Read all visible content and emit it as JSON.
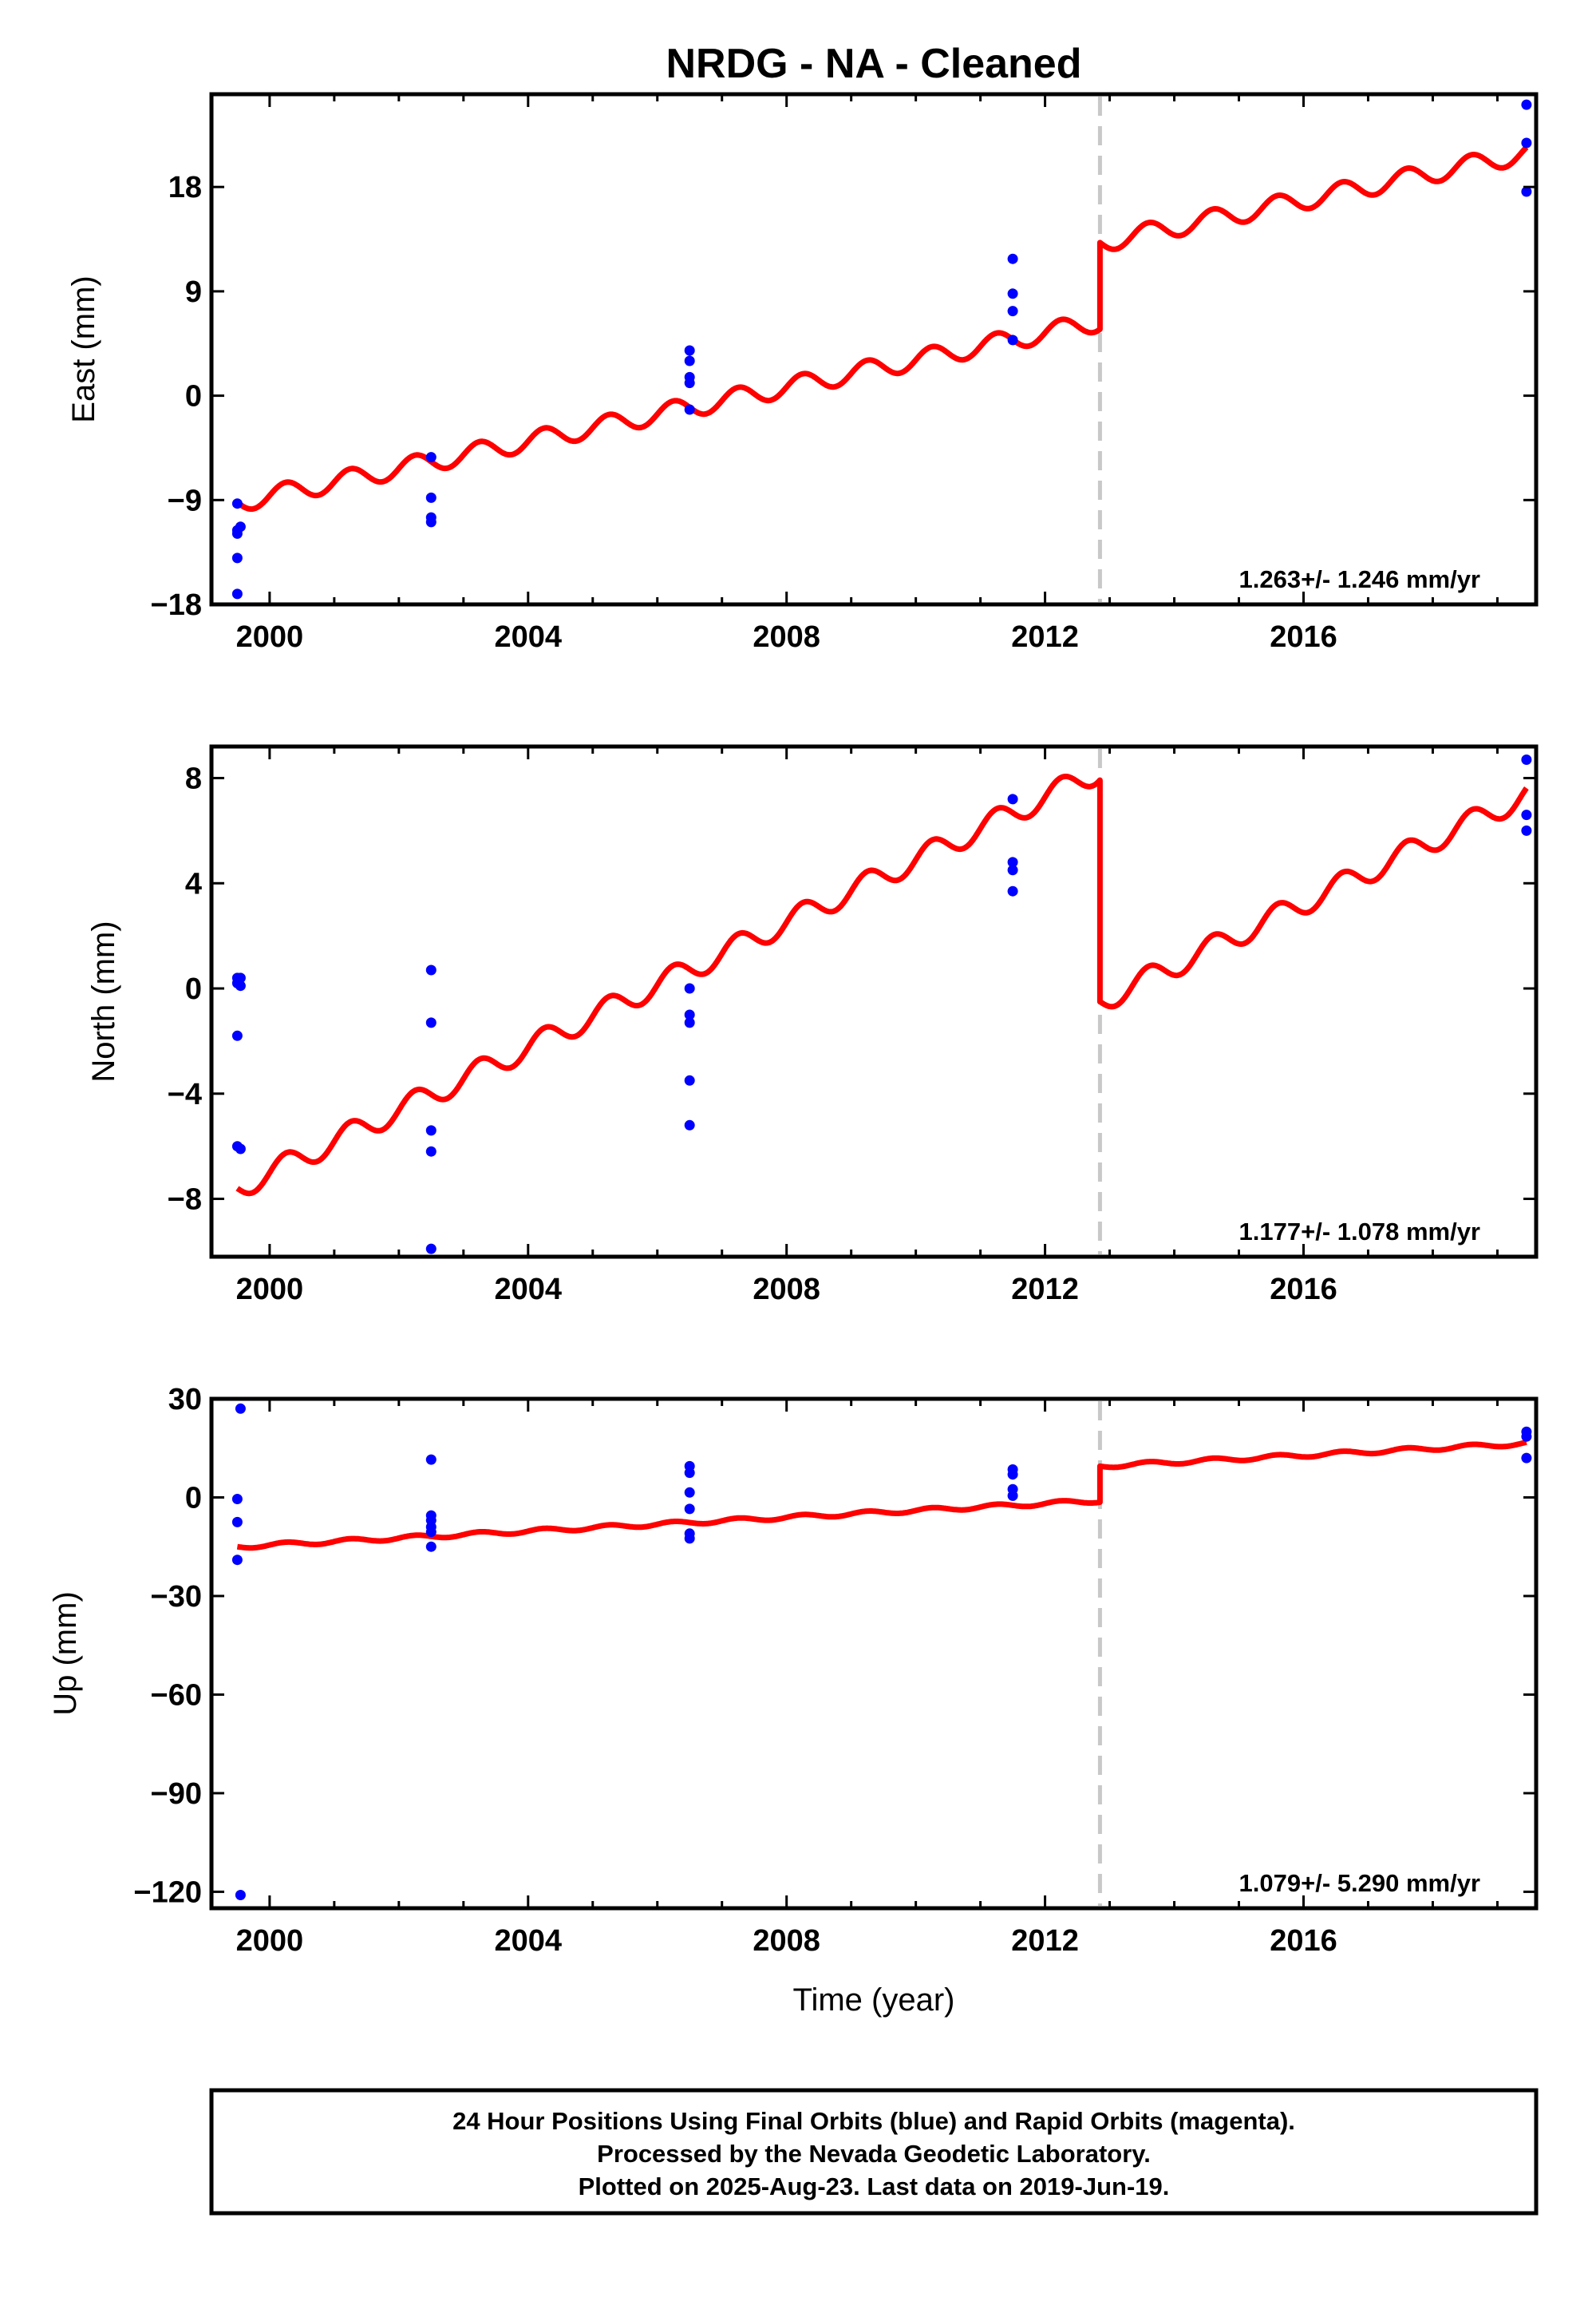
{
  "title": "NRDG  - NA - Cleaned",
  "xlabel": "Time (year)",
  "footer": {
    "line1": "24 Hour Positions Using Final Orbits (blue) and Rapid Orbits (magenta).",
    "line2": "Processed by the Nevada Geodetic Laboratory.",
    "line3": "Plotted on 2025-Aug-23. Last data on 2019-Jun-19."
  },
  "colors": {
    "data_points": "#0000ff",
    "model_line": "#ff0000",
    "event_line": "#c8c8c8"
  },
  "chart_data": [
    {
      "type": "scatter",
      "panel": "east",
      "ylabel": "East (mm)",
      "xlim": [
        1999.1,
        2019.6
      ],
      "ylim": [
        -18,
        26
      ],
      "x_ticks": [
        2000,
        2004,
        2008,
        2012,
        2016
      ],
      "y_ticks": [
        -18,
        -9,
        0,
        9,
        18
      ],
      "grid": false,
      "event_line_x": 2012.85,
      "rate_label": "1.263+/- 1.246 mm/yr",
      "series": [
        {
          "points": [
            [
              1999.5,
              -9.3
            ],
            [
              1999.5,
              -11.6
            ],
            [
              1999.5,
              -11.9
            ],
            [
              1999.55,
              -11.3
            ],
            [
              1999.5,
              -14.0
            ],
            [
              1999.5,
              -17.1
            ],
            [
              2002.5,
              -5.3
            ],
            [
              2002.5,
              -8.8
            ],
            [
              2002.5,
              -10.5
            ],
            [
              2002.5,
              -10.9
            ],
            [
              2006.5,
              3.9
            ],
            [
              2006.5,
              3.0
            ],
            [
              2006.5,
              1.6
            ],
            [
              2006.5,
              1.1
            ],
            [
              2006.5,
              -1.2
            ],
            [
              2011.5,
              11.8
            ],
            [
              2011.5,
              8.8
            ],
            [
              2011.5,
              7.3
            ],
            [
              2011.5,
              4.8
            ],
            [
              2019.45,
              25.1
            ],
            [
              2019.45,
              21.8
            ],
            [
              2019.45,
              17.6
            ]
          ]
        },
        {
          "model": {
            "start": 1999.5,
            "end": 2019.45,
            "break": 2012.85,
            "segments": [
              {
                "value_at_start": -9.2,
                "slope": 1.17,
                "amplitude": 0.85,
                "period": 1
              },
              {
                "value_at_start": 13.2,
                "slope": 1.17,
                "amplitude": 0.85,
                "period": 1
              }
            ]
          }
        }
      ]
    },
    {
      "type": "scatter",
      "panel": "north",
      "ylabel": "North (mm)",
      "xlim": [
        1999.1,
        2019.6
      ],
      "ylim": [
        -10.2,
        9.2
      ],
      "x_ticks": [
        2000,
        2004,
        2008,
        2012,
        2016
      ],
      "y_ticks": [
        -8,
        -4,
        0,
        4,
        8
      ],
      "grid": false,
      "event_line_x": 2012.85,
      "rate_label": "1.177+/- 1.078 mm/yr",
      "series": [
        {
          "points": [
            [
              1999.5,
              0.4
            ],
            [
              1999.55,
              0.4
            ],
            [
              1999.5,
              0.2
            ],
            [
              1999.55,
              0.1
            ],
            [
              1999.5,
              -1.8
            ],
            [
              1999.5,
              -6.0
            ],
            [
              1999.55,
              -6.1
            ],
            [
              2002.5,
              0.7
            ],
            [
              2002.5,
              -1.3
            ],
            [
              2002.5,
              -5.4
            ],
            [
              2002.5,
              -6.2
            ],
            [
              2002.5,
              -9.9
            ],
            [
              2006.5,
              0.0
            ],
            [
              2006.5,
              -1.0
            ],
            [
              2006.5,
              -1.3
            ],
            [
              2006.5,
              -3.5
            ],
            [
              2006.5,
              -5.2
            ],
            [
              2011.5,
              7.2
            ],
            [
              2011.5,
              4.8
            ],
            [
              2011.5,
              4.5
            ],
            [
              2011.5,
              3.7
            ],
            [
              2019.45,
              8.7
            ],
            [
              2019.45,
              6.6
            ],
            [
              2019.45,
              6.0
            ]
          ]
        },
        {
          "model": {
            "start": 1999.5,
            "end": 2019.45,
            "break": 2012.85,
            "segments": [
              {
                "value_at_start": -7.6,
                "slope": 1.19,
                "amplitude": 0.45,
                "period": 1
              },
              {
                "value_at_start": -0.5,
                "slope": 1.19,
                "amplitude": 0.45,
                "period": 1
              }
            ]
          }
        }
      ]
    },
    {
      "type": "scatter",
      "panel": "up",
      "ylabel": "Up (mm)",
      "xlim": [
        1999.1,
        2019.6
      ],
      "ylim": [
        -125,
        30
      ],
      "x_ticks": [
        2000,
        2004,
        2008,
        2012,
        2016
      ],
      "y_ticks": [
        -120,
        -90,
        -60,
        -30,
        0,
        30
      ],
      "grid": false,
      "event_line_x": 2012.85,
      "rate_label": "1.079+/- 5.290 mm/yr",
      "series": [
        {
          "points": [
            [
              1999.55,
              27.0
            ],
            [
              1999.5,
              -0.5
            ],
            [
              1999.5,
              -7.5
            ],
            [
              1999.5,
              -19.0
            ],
            [
              1999.55,
              -121.0
            ],
            [
              2002.5,
              11.5
            ],
            [
              2002.5,
              -5.5
            ],
            [
              2002.5,
              -7.0
            ],
            [
              2002.5,
              -9.0
            ],
            [
              2002.5,
              -10.5
            ],
            [
              2002.5,
              -15.0
            ],
            [
              2006.5,
              9.5
            ],
            [
              2006.5,
              7.5
            ],
            [
              2006.5,
              1.5
            ],
            [
              2006.5,
              -3.5
            ],
            [
              2006.5,
              -11.0
            ],
            [
              2006.5,
              -12.5
            ],
            [
              2011.5,
              8.5
            ],
            [
              2011.5,
              7.0
            ],
            [
              2011.5,
              2.5
            ],
            [
              2011.5,
              0.5
            ],
            [
              2019.45,
              20.0
            ],
            [
              2019.45,
              18.5
            ],
            [
              2019.45,
              12.0
            ]
          ]
        },
        {
          "model": {
            "start": 1999.5,
            "end": 2019.45,
            "break": 2012.85,
            "segments": [
              {
                "value_at_start": -15.0,
                "slope": 1.05,
                "amplitude": 0.6,
                "period": 1
              },
              {
                "value_at_start": 9.5,
                "slope": 1.05,
                "amplitude": 0.6,
                "period": 1
              }
            ]
          }
        }
      ]
    }
  ]
}
